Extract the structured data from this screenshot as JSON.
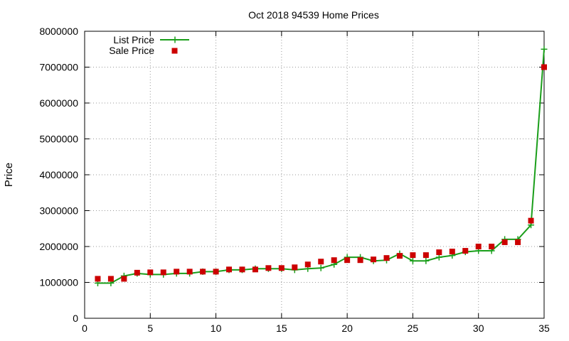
{
  "chart_data": {
    "type": "line",
    "title": "Oct 2018 94539 Home Prices",
    "xlabel": "",
    "ylabel": "Price",
    "xlim": [
      0,
      35
    ],
    "ylim": [
      0,
      8000000
    ],
    "xticks": [
      0,
      5,
      10,
      15,
      20,
      25,
      30,
      35
    ],
    "yticks": [
      0,
      1000000,
      2000000,
      3000000,
      4000000,
      5000000,
      6000000,
      7000000,
      8000000
    ],
    "grid": true,
    "legend_position": "top-left",
    "series": [
      {
        "name": "List Price",
        "style": "line-with-plus-markers",
        "color": "#1a9e1a",
        "x": [
          1,
          2,
          3,
          4,
          5,
          6,
          7,
          8,
          9,
          10,
          11,
          12,
          13,
          14,
          15,
          16,
          17,
          18,
          19,
          20,
          21,
          22,
          23,
          24,
          25,
          26,
          27,
          28,
          29,
          30,
          31,
          32,
          33,
          34,
          35
        ],
        "values": [
          980000,
          980000,
          1180000,
          1250000,
          1220000,
          1220000,
          1250000,
          1250000,
          1300000,
          1300000,
          1350000,
          1350000,
          1380000,
          1380000,
          1380000,
          1350000,
          1380000,
          1400000,
          1500000,
          1700000,
          1700000,
          1600000,
          1620000,
          1800000,
          1600000,
          1600000,
          1700000,
          1750000,
          1850000,
          1880000,
          1880000,
          2200000,
          2200000,
          2600000,
          7500000
        ]
      },
      {
        "name": "Sale Price",
        "style": "square-markers",
        "color": "#cc0000",
        "x": [
          1,
          2,
          3,
          4,
          5,
          6,
          7,
          8,
          9,
          10,
          11,
          12,
          13,
          14,
          15,
          16,
          17,
          18,
          19,
          20,
          21,
          22,
          23,
          24,
          25,
          26,
          27,
          28,
          29,
          30,
          31,
          32,
          33,
          34,
          35
        ],
        "values": [
          1100000,
          1100000,
          1100000,
          1270000,
          1280000,
          1280000,
          1300000,
          1300000,
          1300000,
          1300000,
          1360000,
          1360000,
          1360000,
          1400000,
          1400000,
          1420000,
          1500000,
          1580000,
          1620000,
          1620000,
          1620000,
          1640000,
          1680000,
          1740000,
          1760000,
          1760000,
          1840000,
          1860000,
          1880000,
          2000000,
          2000000,
          2120000,
          2120000,
          2720000,
          7000000
        ]
      }
    ]
  }
}
